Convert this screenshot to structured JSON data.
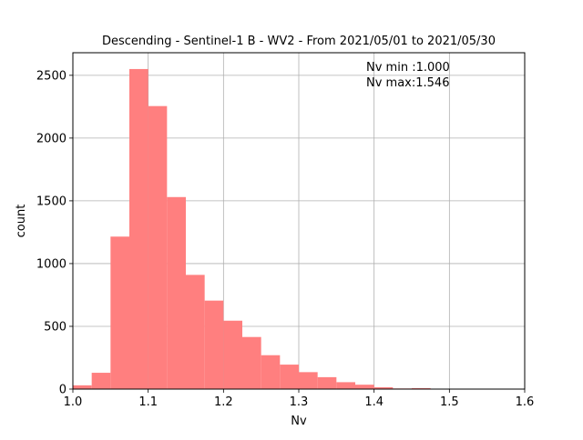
{
  "chart_data": {
    "type": "bar",
    "title": "Descending - Sentinel-1 B - WV2 - From 2021/05/01 to 2021/05/30",
    "xlabel": "Nv",
    "ylabel": "count",
    "xlim": [
      1.0,
      1.6
    ],
    "ylim": [
      0,
      2680
    ],
    "grid": true,
    "bar_color": "#ff7f7f",
    "bins": [
      {
        "x0": 1.0,
        "x1": 1.025,
        "count": 30
      },
      {
        "x0": 1.025,
        "x1": 1.05,
        "count": 130
      },
      {
        "x0": 1.05,
        "x1": 1.075,
        "count": 1215
      },
      {
        "x0": 1.075,
        "x1": 1.1,
        "count": 2550
      },
      {
        "x0": 1.1,
        "x1": 1.125,
        "count": 2255
      },
      {
        "x0": 1.125,
        "x1": 1.15,
        "count": 1530
      },
      {
        "x0": 1.15,
        "x1": 1.175,
        "count": 910
      },
      {
        "x0": 1.175,
        "x1": 1.2,
        "count": 705
      },
      {
        "x0": 1.2,
        "x1": 1.225,
        "count": 545
      },
      {
        "x0": 1.225,
        "x1": 1.25,
        "count": 415
      },
      {
        "x0": 1.25,
        "x1": 1.275,
        "count": 270
      },
      {
        "x0": 1.275,
        "x1": 1.3,
        "count": 195
      },
      {
        "x0": 1.3,
        "x1": 1.325,
        "count": 135
      },
      {
        "x0": 1.325,
        "x1": 1.35,
        "count": 95
      },
      {
        "x0": 1.35,
        "x1": 1.375,
        "count": 55
      },
      {
        "x0": 1.375,
        "x1": 1.4,
        "count": 35
      },
      {
        "x0": 1.4,
        "x1": 1.425,
        "count": 15
      },
      {
        "x0": 1.425,
        "x1": 1.45,
        "count": 5
      },
      {
        "x0": 1.45,
        "x1": 1.475,
        "count": 8
      },
      {
        "x0": 1.475,
        "x1": 1.5,
        "count": 3
      },
      {
        "x0": 1.5,
        "x1": 1.525,
        "count": 2
      },
      {
        "x0": 1.525,
        "x1": 1.55,
        "count": 2
      }
    ],
    "x_ticks": [
      "1.0",
      "1.1",
      "1.2",
      "1.3",
      "1.4",
      "1.5",
      "1.6"
    ],
    "x_tick_values": [
      1.0,
      1.1,
      1.2,
      1.3,
      1.4,
      1.5,
      1.6
    ],
    "y_ticks": [
      "0",
      "500",
      "1000",
      "1500",
      "2000",
      "2500"
    ],
    "y_tick_values": [
      0,
      500,
      1000,
      1500,
      2000,
      2500
    ],
    "annotations": [
      "Nv min :1.000",
      "Nv max:1.546"
    ]
  }
}
